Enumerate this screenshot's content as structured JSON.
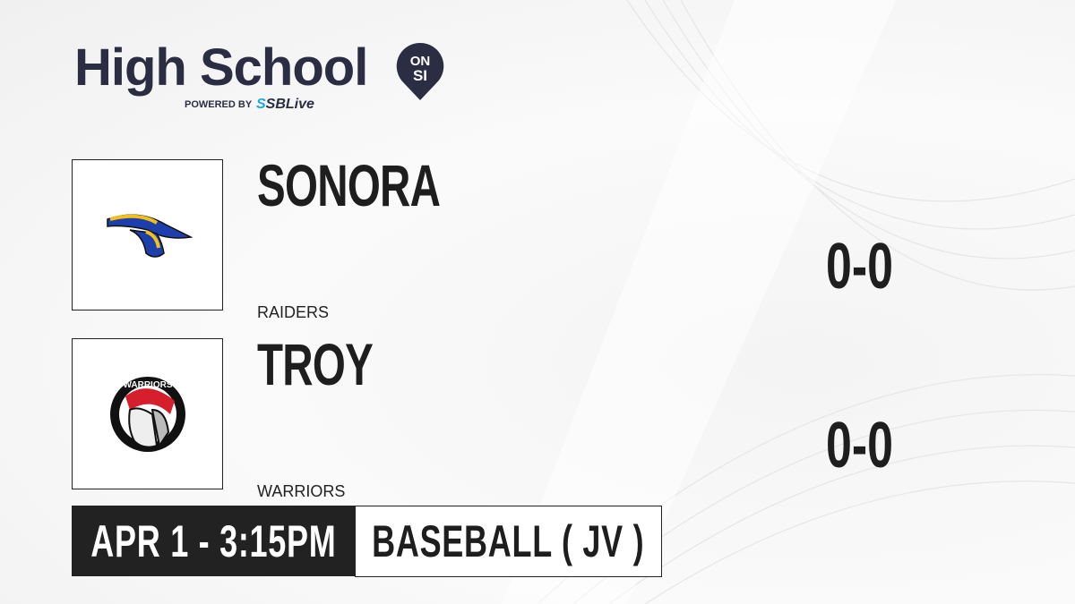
{
  "brand": {
    "title": "High School",
    "badge_top": "ON",
    "badge_bottom": "SI",
    "powered_by": "POWERED BY",
    "partner_prefix": "S",
    "partner": "SBLive",
    "navy": "#2b2d42",
    "partner_blue": "#1aa7e8"
  },
  "teams": [
    {
      "name": "SONORA",
      "mascot": "RAIDERS",
      "score": "0-0",
      "logo_icon": "raider-hat-logo"
    },
    {
      "name": "TROY",
      "mascot": "WARRIORS",
      "score": "0-0",
      "logo_icon": "warrior-helmet-logo",
      "logo_text": "WARRIORS"
    }
  ],
  "game": {
    "datetime": "APR 1 - 3:15PM",
    "sport": "BASEBALL ( JV )"
  }
}
